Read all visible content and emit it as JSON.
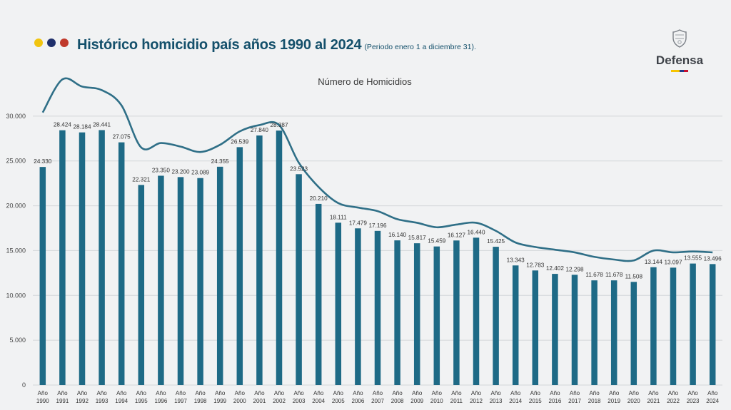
{
  "header": {
    "title": "Histórico homicidio país años 1990 al 2024",
    "subtitle": "(Periodo enero 1 a diciembre 31).",
    "dot_colors": [
      "#f1c40f",
      "#1f2f6b",
      "#c0392b"
    ]
  },
  "logo": {
    "text": "Defensa",
    "icon": "coat-of-arms-icon",
    "flag_colors": [
      "#f6c400",
      "#1f3b8a",
      "#c8102e"
    ]
  },
  "chart_data": {
    "type": "bar",
    "title": "Número de Homicidios",
    "categories": [
      "Año 1990",
      "Año 1991",
      "Año 1992",
      "Año 1993",
      "Año 1994",
      "Año 1995",
      "Año 1996",
      "Año 1997",
      "Año 1998",
      "Año 1999",
      "Año 2000",
      "Año 2001",
      "Año 2002",
      "Año 2003",
      "Año 2004",
      "Año 2005",
      "Año 2006",
      "Año 2007",
      "Año 2008",
      "Año 2009",
      "Año 2010",
      "Año 2011",
      "Año 2012",
      "Año 2013",
      "Año 2014",
      "Año 2015",
      "Año 2016",
      "Año 2017",
      "Año 2018",
      "Año 2019",
      "Año 2020",
      "Año 2021",
      "Año 2022",
      "Año 2023",
      "Año 2024"
    ],
    "values": [
      24330,
      28424,
      28184,
      28441,
      27075,
      22321,
      23350,
      23200,
      23089,
      24355,
      26539,
      27840,
      28387,
      23523,
      20210,
      18111,
      17479,
      17196,
      16140,
      15817,
      15459,
      16127,
      16440,
      15425,
      13343,
      12783,
      12402,
      12298,
      11678,
      11678,
      11508,
      13144,
      13097,
      13555,
      13496
    ],
    "value_labels": [
      "24.330",
      "28.424",
      "28.184",
      "28.441",
      "27.075",
      "22.321",
      "23.350",
      "23.200",
      "23.089",
      "24.355",
      "26.539",
      "27.840",
      "28.387",
      "23.523",
      "20.210",
      "18.111",
      "17.479",
      "17.196",
      "16.140",
      "15.817",
      "15.459",
      "16.127",
      "16.440",
      "15.425",
      "13.343",
      "12.783",
      "12.402",
      "12.298",
      "11.678",
      "11.678",
      "11.508",
      "13.144",
      "13.097",
      "13.555",
      "13.496"
    ],
    "trend_line": [
      30400,
      34100,
      33300,
      32900,
      31200,
      26500,
      27000,
      26600,
      26000,
      26800,
      28300,
      29000,
      29000,
      24800,
      22100,
      20300,
      19800,
      19400,
      18500,
      18100,
      17600,
      17900,
      18100,
      17200,
      15900,
      15400,
      15100,
      14800,
      14300,
      14000,
      13900,
      15000,
      14800,
      14900,
      14800
    ],
    "yticks": [
      0,
      5000,
      10000,
      15000,
      20000,
      25000,
      30000
    ],
    "ytick_labels": [
      "0",
      "5.000",
      "10.000",
      "15.000",
      "20.000",
      "25.000",
      "30.000"
    ],
    "ylim": [
      0,
      35000
    ],
    "bar_color": "#1e6a86",
    "line_color": "#2f6f87",
    "grid": true
  }
}
